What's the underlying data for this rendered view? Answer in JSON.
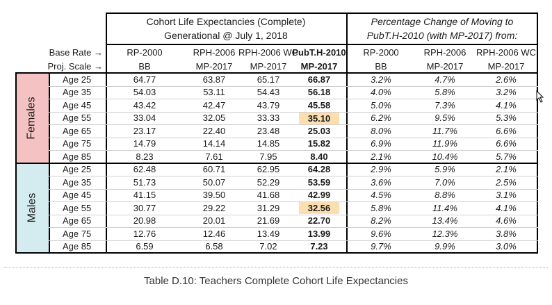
{
  "header": {
    "left_title_line1": "Cohort Life Expectancies (Complete)",
    "left_title_line2": "Generational @ July 1, 2018",
    "right_title_line1": "Percentage Change of Moving to",
    "right_title_line2": "PubT.H-2010 (with MP-2017) from:",
    "base_rate_label": "Base Rate →",
    "proj_scale_label": "Proj. Scale →",
    "columns": [
      {
        "base": "RP-2000",
        "scale": "BB"
      },
      {
        "base": "RPH-2006",
        "scale": "MP-2017"
      },
      {
        "base": "RPH-2006 WC",
        "scale": "MP-2017"
      },
      {
        "base": "PubT.H-2010",
        "scale": "MP-2017"
      },
      {
        "base": "RP-2000",
        "scale": "BB"
      },
      {
        "base": "RPH-2006",
        "scale": "MP-2017"
      },
      {
        "base": "RPH-2006 WC",
        "scale": "MP-2017"
      }
    ]
  },
  "groups": [
    {
      "label": "Females",
      "color": "#f4c2c2",
      "rows": [
        {
          "age": "Age 25",
          "values": [
            "64.77",
            "63.87",
            "65.17",
            "66.87",
            "3.2%",
            "4.7%",
            "2.6%"
          ]
        },
        {
          "age": "Age 35",
          "values": [
            "54.03",
            "53.11",
            "54.43",
            "56.18",
            "4.0%",
            "5.8%",
            "3.2%"
          ]
        },
        {
          "age": "Age 45",
          "values": [
            "43.42",
            "42.47",
            "43.79",
            "45.58",
            "5.0%",
            "7.3%",
            "4.1%"
          ]
        },
        {
          "age": "Age 55",
          "values": [
            "33.04",
            "32.05",
            "33.33",
            "35.10",
            "6.2%",
            "9.5%",
            "5.3%"
          ],
          "highlight": true
        },
        {
          "age": "Age 65",
          "values": [
            "23.17",
            "22.40",
            "23.48",
            "25.03",
            "8.0%",
            "11.7%",
            "6.6%"
          ]
        },
        {
          "age": "Age 75",
          "values": [
            "14.79",
            "14.14",
            "14.85",
            "15.82",
            "6.9%",
            "11.9%",
            "6.6%"
          ]
        },
        {
          "age": "Age 85",
          "values": [
            "8.23",
            "7.61",
            "7.95",
            "8.40",
            "2.1%",
            "10.4%",
            "5.7%"
          ]
        }
      ]
    },
    {
      "label": "Males",
      "color": "#d4ecf0",
      "rows": [
        {
          "age": "Age 25",
          "values": [
            "62.48",
            "60.71",
            "62.95",
            "64.28",
            "2.9%",
            "5.9%",
            "2.1%"
          ]
        },
        {
          "age": "Age 35",
          "values": [
            "51.73",
            "50.07",
            "52.29",
            "53.59",
            "3.6%",
            "7.0%",
            "2.5%"
          ]
        },
        {
          "age": "Age 45",
          "values": [
            "41.15",
            "39.50",
            "41.68",
            "42.99",
            "4.5%",
            "8.8%",
            "3.1%"
          ]
        },
        {
          "age": "Age 55",
          "values": [
            "30.77",
            "29.22",
            "31.29",
            "32.56",
            "5.8%",
            "11.4%",
            "4.1%"
          ],
          "highlight": true
        },
        {
          "age": "Age 65",
          "values": [
            "20.98",
            "20.01",
            "21.69",
            "22.70",
            "8.2%",
            "13.4%",
            "4.6%"
          ]
        },
        {
          "age": "Age 75",
          "values": [
            "12.76",
            "12.46",
            "13.49",
            "13.99",
            "9.6%",
            "12.3%",
            "3.8%"
          ]
        },
        {
          "age": "Age 85",
          "values": [
            "6.59",
            "6.58",
            "7.02",
            "7.23",
            "9.7%",
            "9.9%",
            "3.0%"
          ]
        }
      ]
    }
  ],
  "highlight_color": "#fbdfb0",
  "caption": "Table D.10: Teachers Complete Cohort Life Expectancies"
}
